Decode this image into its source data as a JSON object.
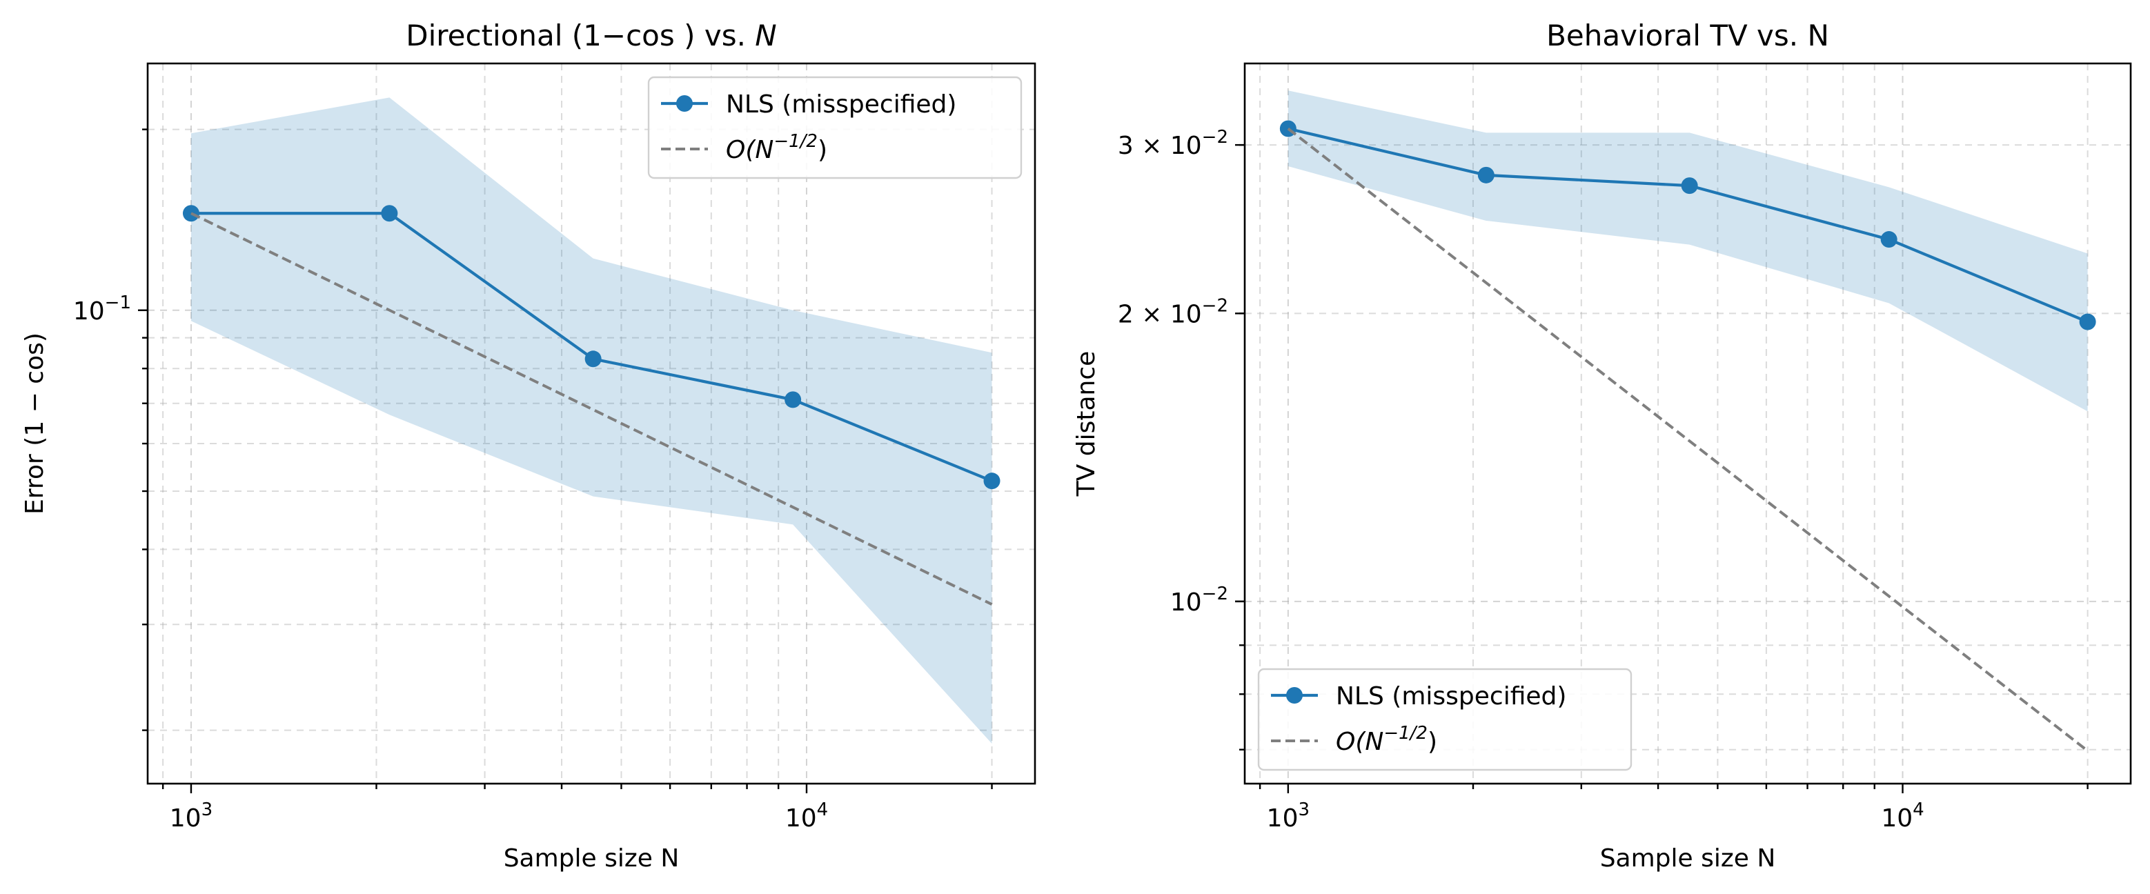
{
  "chart_data": [
    {
      "type": "line",
      "title": "Directional (1−cos ) vs. N",
      "title_parts": {
        "prefix": "Directional (1−cos ) vs. ",
        "italic": "N"
      },
      "xlabel": "Sample size N",
      "ylabel": "Error (1 − cos)",
      "xscale": "log",
      "yscale": "log",
      "xlim": [
        850,
        23500
      ],
      "ylim": [
        0.0163,
        0.2575
      ],
      "grid": true,
      "legend": "upper right",
      "x_ticks": [
        {
          "value": 1000,
          "label": "10",
          "exp": "3"
        },
        {
          "value": 10000,
          "label": "10",
          "exp": "4"
        }
      ],
      "y_ticks": [
        {
          "value": 0.1,
          "label": "10",
          "exp": "−1"
        }
      ],
      "series": [
        {
          "name": "NLS (misspecified)",
          "color": "#1f77b4",
          "marker": "circle",
          "style": "solid",
          "x": [
            1000,
            2100,
            4500,
            9500,
            20000
          ],
          "y": [
            0.145,
            0.145,
            0.083,
            0.071,
            0.052
          ],
          "band_upper": [
            0.197,
            0.226,
            0.122,
            0.1,
            0.085
          ],
          "band_lower": [
            0.096,
            0.067,
            0.049,
            0.044,
            0.019
          ]
        },
        {
          "name": "O(N^-1/2)",
          "legend_label": {
            "base": "O(N",
            "sup": "−1/2",
            "tail": ")"
          },
          "color": "#7f7f7f",
          "style": "dashed",
          "x": [
            1000,
            20000
          ],
          "y": [
            0.145,
            0.0324
          ]
        }
      ]
    },
    {
      "type": "line",
      "title": "Behavioral TV vs. N",
      "xlabel": "Sample size N",
      "ylabel": "TV distance",
      "xscale": "log",
      "yscale": "log",
      "xlim": [
        850,
        23500
      ],
      "ylim": [
        0.00645,
        0.0365
      ],
      "grid": true,
      "legend": "lower left",
      "x_ticks": [
        {
          "value": 1000,
          "label": "10",
          "exp": "3"
        },
        {
          "value": 10000,
          "label": "10",
          "exp": "4"
        }
      ],
      "y_ticks": [
        {
          "value": 0.03,
          "label": "3 × 10",
          "exp": "−2"
        },
        {
          "value": 0.02,
          "label": "2 × 10",
          "exp": "−2"
        },
        {
          "value": 0.01,
          "label": "10",
          "exp": "−2"
        }
      ],
      "series": [
        {
          "name": "NLS (misspecified)",
          "color": "#1f77b4",
          "marker": "circle",
          "style": "solid",
          "x": [
            1000,
            2100,
            4500,
            9500,
            20000
          ],
          "y": [
            0.0312,
            0.0279,
            0.0272,
            0.0239,
            0.0196
          ],
          "band_upper": [
            0.0342,
            0.0309,
            0.0309,
            0.0271,
            0.0231
          ],
          "band_lower": [
            0.0285,
            0.025,
            0.0236,
            0.0205,
            0.0158
          ]
        },
        {
          "name": "O(N^-1/2)",
          "legend_label": {
            "base": "O(N",
            "sup": "−1/2",
            "tail": ")"
          },
          "color": "#7f7f7f",
          "style": "dashed",
          "x": [
            1000,
            20000
          ],
          "y": [
            0.0312,
            0.00698
          ]
        }
      ]
    }
  ]
}
